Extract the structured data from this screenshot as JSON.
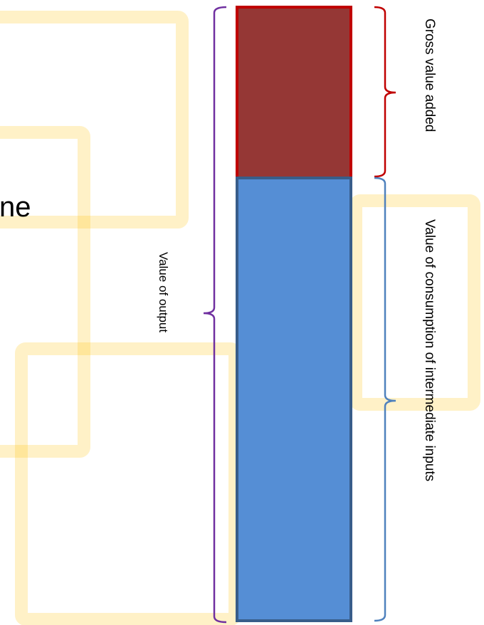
{
  "diagram": {
    "segments": [
      {
        "name": "Gross value added",
        "color": "#953735",
        "stroke": "#c00000"
      },
      {
        "name": "Value of consumption of intermediate inputs",
        "color": "#558ed5",
        "stroke": "#385d8a"
      }
    ],
    "labels": {
      "gross_value_added": "Gross value added",
      "intermediate_inputs": "Value of consumption of intermediate inputs",
      "value_of_output": "Value of output"
    },
    "partial_text": "ne",
    "colors": {
      "decor": "#ffc000",
      "brace_gva": "#c00000",
      "brace_intermediate": "#4f81bd",
      "brace_output": "#7030a0",
      "text": "#000000"
    }
  }
}
